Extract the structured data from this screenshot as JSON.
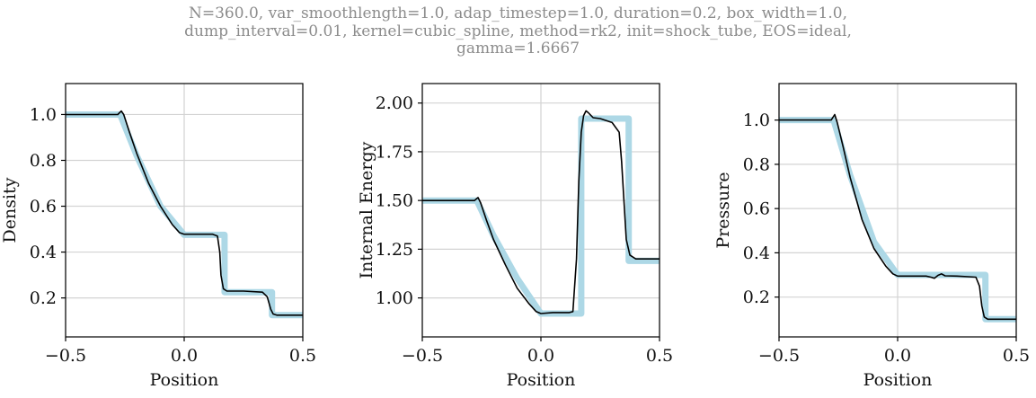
{
  "title_lines": [
    "N=360.0, var_smoothlength=1.0, adap_timestep=1.0, duration=0.2, box_width=1.0,",
    "dump_interval=0.01, kernel=cubic_spline, method=rk2, init=shock_tube, EOS=ideal,",
    "gamma=1.6667"
  ],
  "colors": {
    "reference": "#add8e6",
    "simulation": "#000000",
    "grid": "#d3d3d3",
    "title": "#8c8c8c"
  },
  "chart_data": [
    {
      "type": "line",
      "xlabel": "Position",
      "ylabel": "Density",
      "xlim": [
        -0.5,
        0.5
      ],
      "ylim": [
        0.03,
        1.135
      ],
      "xticks": [
        -0.5,
        0.0,
        0.5
      ],
      "xtick_labels": [
        "−0.5",
        "0.0",
        "0.5"
      ],
      "yticks": [
        0.2,
        0.4,
        0.6,
        0.8,
        1.0
      ],
      "ytick_labels": [
        "0.2",
        "0.4",
        "0.6",
        "0.8",
        "1.0"
      ],
      "grid": true,
      "series": [
        {
          "role": "reference",
          "x": [
            -0.5,
            -0.27,
            -0.2,
            -0.1,
            0.0,
            0.17,
            0.17,
            0.37,
            0.37,
            0.5
          ],
          "y": [
            1.0,
            1.0,
            0.82,
            0.6,
            0.475,
            0.475,
            0.225,
            0.225,
            0.125,
            0.125
          ]
        },
        {
          "role": "simulation",
          "x": [
            -0.5,
            -0.28,
            -0.265,
            -0.255,
            -0.23,
            -0.2,
            -0.15,
            -0.1,
            -0.05,
            -0.02,
            0.0,
            0.05,
            0.12,
            0.14,
            0.15,
            0.155,
            0.165,
            0.18,
            0.25,
            0.33,
            0.35,
            0.365,
            0.375,
            0.39,
            0.42,
            0.5
          ],
          "y": [
            1.0,
            1.0,
            1.015,
            1.0,
            0.92,
            0.83,
            0.7,
            0.6,
            0.52,
            0.485,
            0.478,
            0.478,
            0.478,
            0.47,
            0.4,
            0.3,
            0.24,
            0.23,
            0.23,
            0.225,
            0.205,
            0.15,
            0.13,
            0.125,
            0.125,
            0.125
          ]
        }
      ]
    },
    {
      "type": "line",
      "xlabel": "Position",
      "ylabel": "Internal Energy",
      "xlim": [
        -0.5,
        0.5
      ],
      "ylim": [
        0.8,
        2.1
      ],
      "xticks": [
        -0.5,
        0.0,
        0.5
      ],
      "xtick_labels": [
        "−0.5",
        "0.0",
        "0.5"
      ],
      "yticks": [
        1.0,
        1.25,
        1.5,
        1.75,
        2.0
      ],
      "ytick_labels": [
        "1.00",
        "1.25",
        "1.50",
        "1.75",
        "2.00"
      ],
      "grid": true,
      "series": [
        {
          "role": "reference",
          "x": [
            -0.5,
            -0.27,
            -0.2,
            -0.1,
            0.0,
            0.17,
            0.17,
            0.37,
            0.37,
            0.5
          ],
          "y": [
            1.5,
            1.5,
            1.32,
            1.1,
            0.92,
            0.92,
            1.92,
            1.92,
            1.19,
            1.19
          ]
        },
        {
          "role": "simulation",
          "x": [
            -0.5,
            -0.28,
            -0.265,
            -0.255,
            -0.23,
            -0.2,
            -0.15,
            -0.1,
            -0.05,
            -0.02,
            0.0,
            0.05,
            0.12,
            0.135,
            0.15,
            0.16,
            0.17,
            0.18,
            0.19,
            0.2,
            0.22,
            0.25,
            0.3,
            0.33,
            0.34,
            0.35,
            0.36,
            0.375,
            0.4,
            0.5
          ],
          "y": [
            1.5,
            1.5,
            1.515,
            1.49,
            1.4,
            1.3,
            1.17,
            1.05,
            0.97,
            0.93,
            0.92,
            0.925,
            0.925,
            0.93,
            1.2,
            1.6,
            1.85,
            1.935,
            1.96,
            1.95,
            1.925,
            1.92,
            1.9,
            1.85,
            1.7,
            1.5,
            1.3,
            1.22,
            1.2,
            1.2
          ]
        }
      ]
    },
    {
      "type": "line",
      "xlabel": "Position",
      "ylabel": "Pressure",
      "xlim": [
        -0.5,
        0.5
      ],
      "ylim": [
        0.02,
        1.165
      ],
      "xticks": [
        -0.5,
        0.0,
        0.5
      ],
      "xtick_labels": [
        "−0.5",
        "0.0",
        "0.5"
      ],
      "yticks": [
        0.2,
        0.4,
        0.6,
        0.8,
        1.0
      ],
      "ytick_labels": [
        "0.2",
        "0.4",
        "0.6",
        "0.8",
        "1.0"
      ],
      "grid": true,
      "series": [
        {
          "role": "reference",
          "x": [
            -0.5,
            -0.27,
            -0.2,
            -0.1,
            0.0,
            0.17,
            0.37,
            0.37,
            0.5
          ],
          "y": [
            1.0,
            1.0,
            0.75,
            0.45,
            0.3,
            0.3,
            0.3,
            0.1,
            0.1
          ]
        },
        {
          "role": "simulation",
          "x": [
            -0.5,
            -0.28,
            -0.265,
            -0.255,
            -0.23,
            -0.2,
            -0.15,
            -0.1,
            -0.05,
            -0.02,
            0.0,
            0.05,
            0.12,
            0.14,
            0.155,
            0.17,
            0.185,
            0.2,
            0.25,
            0.33,
            0.345,
            0.355,
            0.365,
            0.38,
            0.4,
            0.5
          ],
          "y": [
            1.0,
            1.0,
            1.025,
            0.99,
            0.88,
            0.74,
            0.55,
            0.42,
            0.34,
            0.305,
            0.295,
            0.295,
            0.295,
            0.29,
            0.285,
            0.298,
            0.305,
            0.296,
            0.295,
            0.29,
            0.25,
            0.16,
            0.11,
            0.1,
            0.1,
            0.1
          ]
        }
      ]
    }
  ]
}
